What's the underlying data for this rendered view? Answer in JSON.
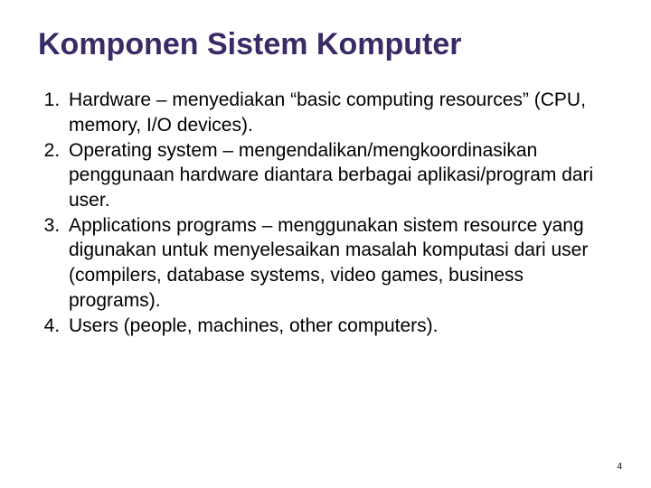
{
  "title": "Komponen Sistem Komputer",
  "title_color": "#3a2a66",
  "background_color": "#ffffff",
  "text_color": "#000000",
  "title_fontsize": 34,
  "body_fontsize": 21,
  "items": [
    "Hardware – menyediakan “basic computing resources” (CPU, memory, I/O devices).",
    "Operating system – mengendalikan/mengkoordinasikan penggunaan hardware diantara berbagai aplikasi/program dari user.",
    "Applications programs – menggunakan sistem resource yang digunakan untuk menyelesaikan masalah komputasi dari user (compilers, database systems, video games, business programs).",
    "Users (people, machines, other computers)."
  ],
  "page_number": "4"
}
